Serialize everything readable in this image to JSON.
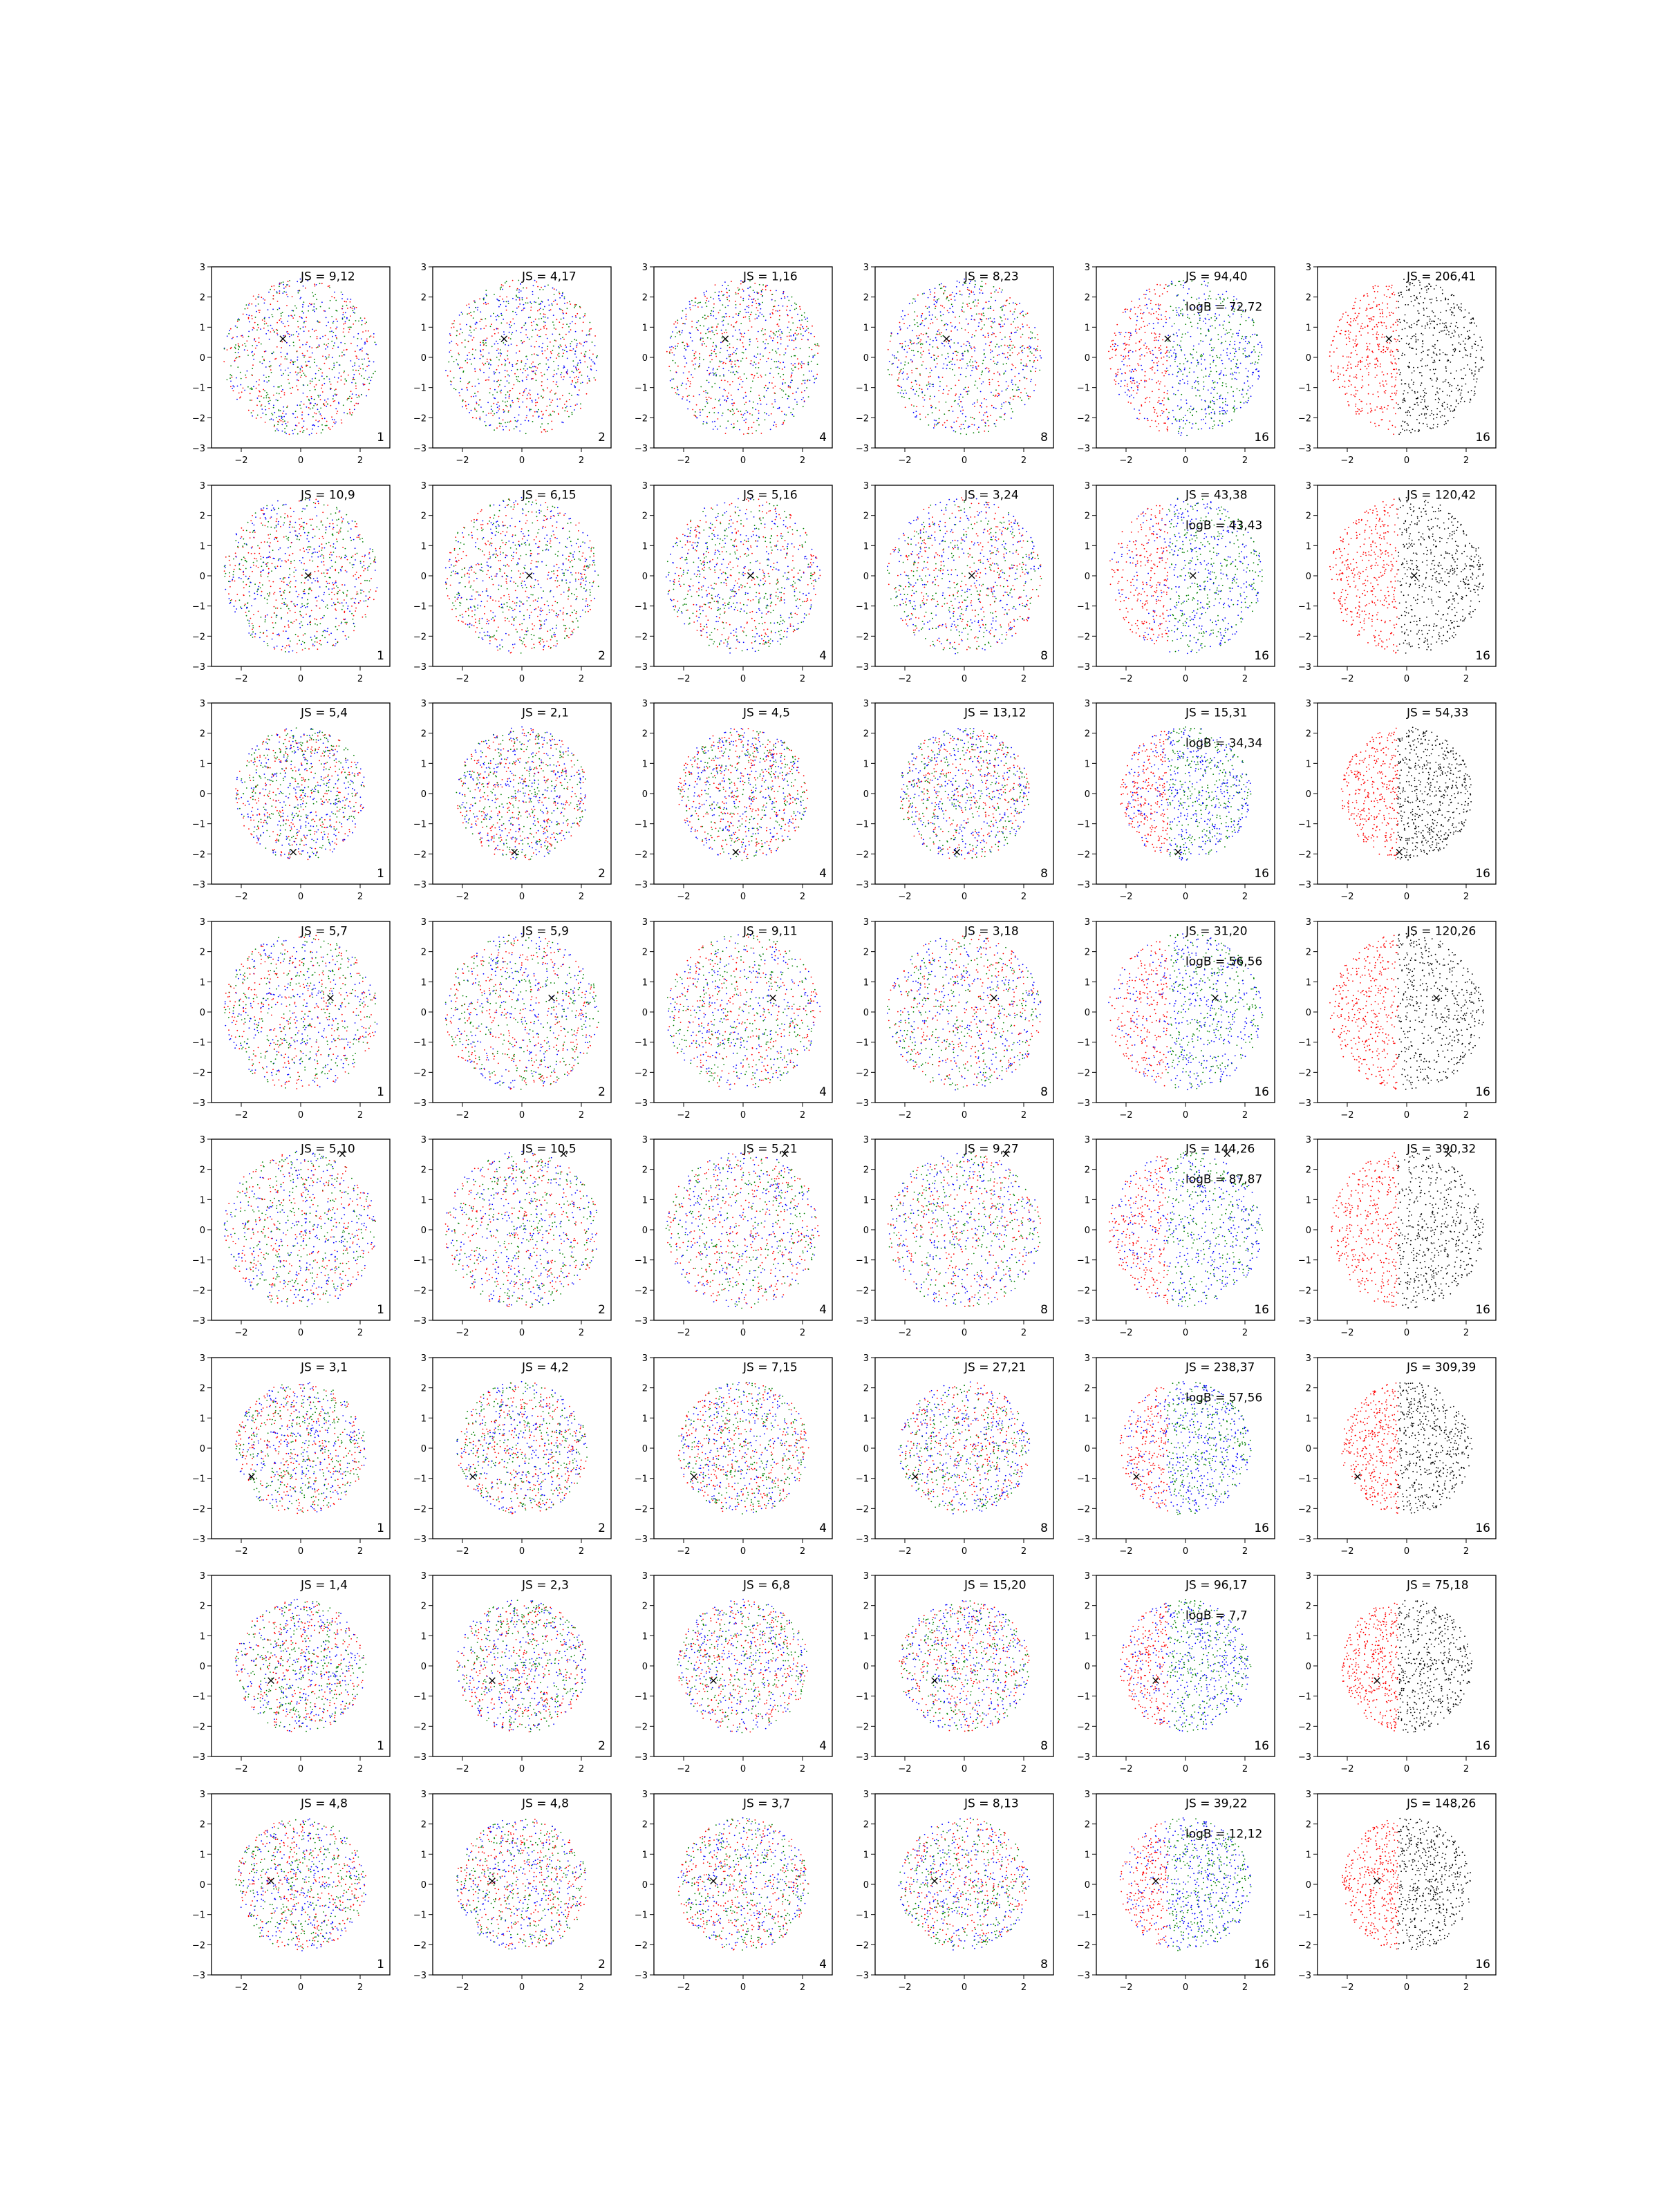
{
  "chart_data": {
    "type": "scatter",
    "rows": 8,
    "cols": 6,
    "xlim": [
      -3,
      3
    ],
    "ylim": [
      -3,
      3
    ],
    "xticks": [
      -2,
      0,
      2
    ],
    "yticks": [
      -3,
      -2,
      -1,
      0,
      1,
      2,
      3
    ],
    "grid": false,
    "legend": "none",
    "colors": {
      "red": "#ff0000",
      "green": "#008000",
      "blue": "#0000ff",
      "black": "#000000"
    },
    "marker_symbol": "×",
    "marker_positions": [
      [
        -0.6,
        0.65
      ],
      [
        0.25,
        0.05
      ],
      [
        -0.25,
        -1.9
      ],
      [
        1.0,
        0.5
      ],
      [
        1.4,
        2.55
      ],
      [
        -1.65,
        -0.9
      ],
      [
        -1.0,
        -0.45
      ],
      [
        -1.0,
        0.15
      ]
    ],
    "panels": [
      [
        {
          "js": "JS = 9,12",
          "corner": "1"
        },
        {
          "js": "JS = 4,17",
          "corner": "2"
        },
        {
          "js": "JS = 1,16",
          "corner": "4"
        },
        {
          "js": "JS = 8,23",
          "corner": "8"
        },
        {
          "js": "JS = 94,40",
          "logb": "logB = 72,72",
          "corner": "16"
        },
        {
          "js": "JS = 206,41",
          "corner": "16"
        }
      ],
      [
        {
          "js": "JS = 10,9",
          "corner": "1"
        },
        {
          "js": "JS = 6,15",
          "corner": "2"
        },
        {
          "js": "JS = 5,16",
          "corner": "4"
        },
        {
          "js": "JS = 3,24",
          "corner": "8"
        },
        {
          "js": "JS = 43,38",
          "logb": "logB = 43,43",
          "corner": "16"
        },
        {
          "js": "JS = 120,42",
          "corner": "16"
        }
      ],
      [
        {
          "js": "JS = 5,4",
          "corner": "1"
        },
        {
          "js": "JS = 2,1",
          "corner": "2"
        },
        {
          "js": "JS = 4,5",
          "corner": "4"
        },
        {
          "js": "JS = 13,12",
          "corner": "8"
        },
        {
          "js": "JS = 15,31",
          "logb": "logB = 34,34",
          "corner": "16"
        },
        {
          "js": "JS = 54,33",
          "corner": "16"
        }
      ],
      [
        {
          "js": "JS = 5,7",
          "corner": "1"
        },
        {
          "js": "JS = 5,9",
          "corner": "2"
        },
        {
          "js": "JS = 9,11",
          "corner": "4"
        },
        {
          "js": "JS = 3,18",
          "corner": "8"
        },
        {
          "js": "JS = 31,20",
          "logb": "logB = 56,56",
          "corner": "16"
        },
        {
          "js": "JS = 120,26",
          "corner": "16"
        }
      ],
      [
        {
          "js": "JS = 5,10",
          "corner": "1"
        },
        {
          "js": "JS = 10,5",
          "corner": "2"
        },
        {
          "js": "JS = 5,21",
          "corner": "4"
        },
        {
          "js": "JS = 9,27",
          "corner": "8"
        },
        {
          "js": "JS = 144,26",
          "logb": "logB = 87,87",
          "corner": "16"
        },
        {
          "js": "JS = 390,32",
          "corner": "16"
        }
      ],
      [
        {
          "js": "JS = 3,1",
          "corner": "1"
        },
        {
          "js": "JS = 4,2",
          "corner": "2"
        },
        {
          "js": "JS = 7,15",
          "corner": "4"
        },
        {
          "js": "JS = 27,21",
          "corner": "8"
        },
        {
          "js": "JS = 238,37",
          "logb": "logB = 57,56",
          "corner": "16"
        },
        {
          "js": "JS = 309,39",
          "corner": "16"
        }
      ],
      [
        {
          "js": "JS = 1,4",
          "corner": "1"
        },
        {
          "js": "JS = 2,3",
          "corner": "2"
        },
        {
          "js": "JS = 6,8",
          "corner": "4"
        },
        {
          "js": "JS = 15,20",
          "corner": "8"
        },
        {
          "js": "JS = 96,17",
          "logb": "logB = 7,7",
          "corner": "16"
        },
        {
          "js": "JS = 75,18",
          "corner": "16"
        }
      ],
      [
        {
          "js": "JS = 4,8",
          "corner": "1"
        },
        {
          "js": "JS = 4,8",
          "corner": "2"
        },
        {
          "js": "JS = 3,7",
          "corner": "4"
        },
        {
          "js": "JS = 8,13",
          "corner": "8"
        },
        {
          "js": "JS = 39,22",
          "logb": "logB = 12,12",
          "corner": "16"
        },
        {
          "js": "JS = 148,26",
          "corner": "16"
        }
      ]
    ]
  }
}
